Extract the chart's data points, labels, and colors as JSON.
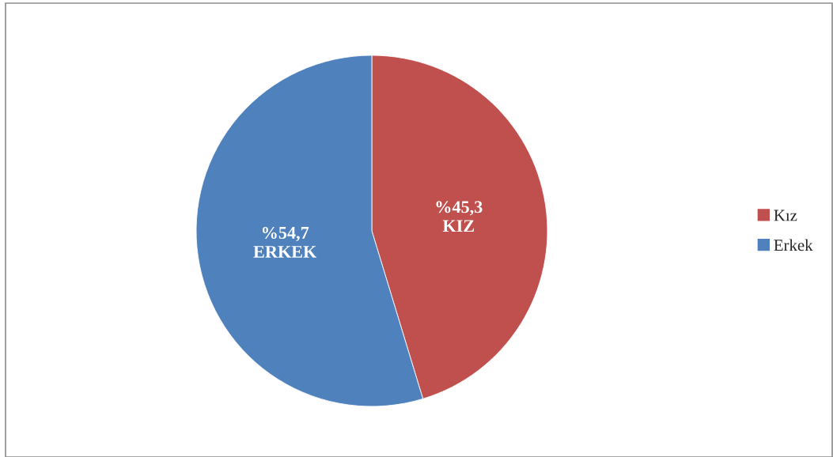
{
  "chart_data": {
    "type": "pie",
    "categories": [
      "Kız",
      "Erkek"
    ],
    "values": [
      45.3,
      54.7
    ],
    "colors": [
      "#c0504d",
      "#4f81bd"
    ],
    "value_labels": [
      "%45,3\nKIZ",
      "%54,7\nERKEK"
    ],
    "legend": "right"
  }
}
